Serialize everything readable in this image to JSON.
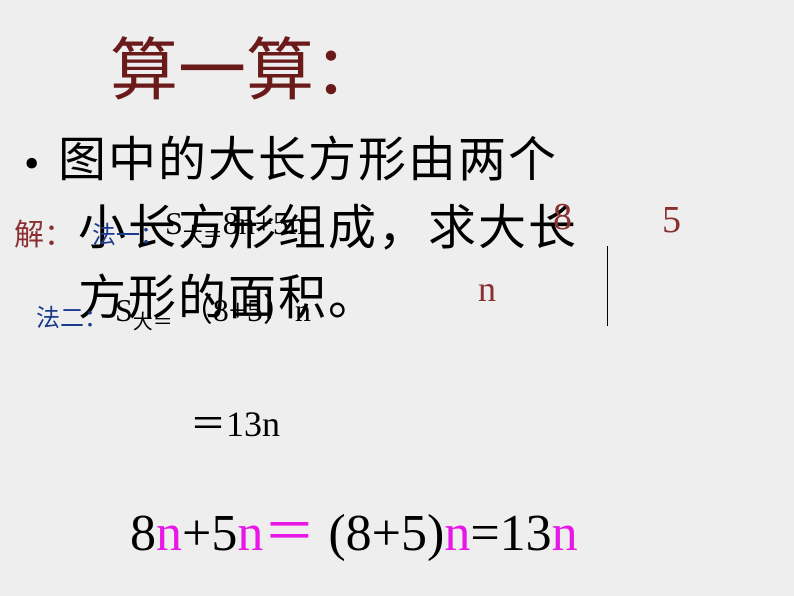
{
  "title": "算一算：",
  "bullet": "•",
  "body": {
    "line1": "图中的大长方形由两个",
    "line2": "小长方形组成，求大长",
    "line3": "方形的面积。"
  },
  "solution": {
    "jie": "解：",
    "method1_label": "法一：",
    "method1_expr_pre": "S",
    "method1_expr_sub": "大＝",
    "method1_expr_post": "8n+5n",
    "method2_label": "法二：",
    "method2_expr_pre": "S",
    "method2_expr_sub": "大＝",
    "method2_expr_post": " （8+5）n",
    "result": "＝13n"
  },
  "diagram": {
    "label_8": "8",
    "label_5": "5",
    "label_n": "n"
  },
  "bottom": {
    "p1": "8",
    "p2": "n",
    "p3": "+5",
    "p4": "n",
    "eq": " ＝ ",
    "p5": " (8+5)",
    "p6": "n",
    "p7": "=13",
    "p8": "n"
  },
  "colors": {
    "background": "#eeeeee",
    "title": "#6b1a1a",
    "body_text": "#000000",
    "solution_label": "#8b3030",
    "method_label": "#1a3a8b",
    "diagram_label": "#8b3030",
    "pink": "#e817e8"
  },
  "typography": {
    "title_fontsize": 68,
    "body_fontsize": 48,
    "bottom_fontsize": 52
  }
}
